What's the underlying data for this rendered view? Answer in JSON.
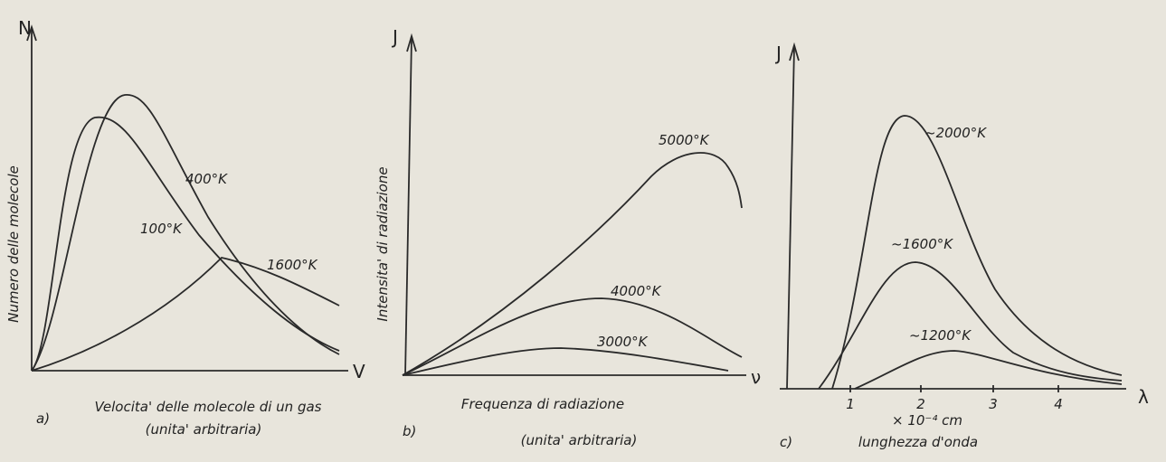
{
  "panels": [
    {
      "tag": "a)",
      "y_axis": "N",
      "x_axis": "V",
      "y_title": "Numero delle molecole",
      "x_title": "Velocita' delle molecole di un gas",
      "x_subtitle": "(unita' arbitraria)",
      "curves": [
        "100°K",
        "400°K",
        "1600°K"
      ]
    },
    {
      "tag": "b)",
      "y_axis": "J",
      "x_axis": "ν",
      "y_title": "Intensita' di radiazione",
      "x_title": "Frequenza di radiazione",
      "x_subtitle": "(unita' arbitraria)",
      "curves": [
        "5000°K",
        "4000°K",
        "3000°K"
      ]
    },
    {
      "tag": "c)",
      "y_axis": "J",
      "x_axis": "λ",
      "x_ticks": [
        "1",
        "2",
        "3",
        "4"
      ],
      "x_unit": "× 10⁻⁴ cm",
      "x_title": "lunghezza d'onda",
      "curves": [
        "~2000°K",
        "~1600°K",
        "~1200°K"
      ]
    }
  ]
}
